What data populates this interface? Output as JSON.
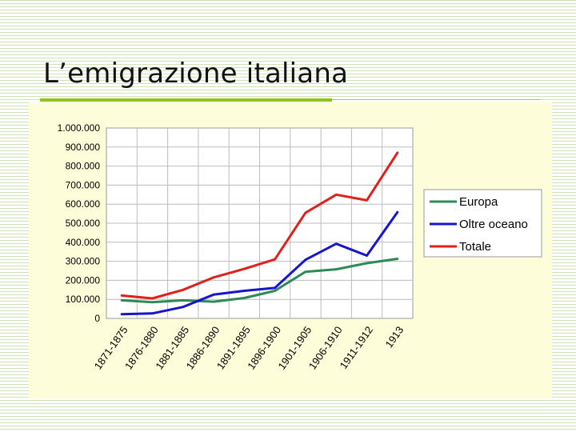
{
  "slide": {
    "title": "L’emigrazione italiana"
  },
  "colors": {
    "accent_bar": "#8fc31f",
    "panel_background": "#fdfdd9",
    "grid": "#bcbcbc"
  },
  "chart_data": {
    "type": "line",
    "title": "",
    "xlabel": "",
    "ylabel": "",
    "categories": [
      "1871-1875",
      "1876-1880",
      "1881-1885",
      "1886-1890",
      "1891-1895",
      "1896-1900",
      "1901-1905",
      "1906-1910",
      "1911-1912",
      "1913"
    ],
    "ylim": [
      0,
      1000000
    ],
    "yticks": [
      0,
      100000,
      200000,
      300000,
      400000,
      500000,
      600000,
      700000,
      800000,
      900000,
      1000000
    ],
    "ytick_labels": [
      "0",
      "100.000",
      "200.000",
      "300.000",
      "400.000",
      "500.000",
      "600.000",
      "700.000",
      "800.000",
      "900.000",
      "1.000.000"
    ],
    "grid": true,
    "legend_position": "right",
    "series": [
      {
        "name": "Europa",
        "color": "#2e8b57",
        "x": [
          0,
          1,
          2,
          3,
          4,
          5,
          6,
          7,
          8,
          9
        ],
        "values": [
          95000,
          85000,
          95000,
          88000,
          107000,
          145000,
          245000,
          258000,
          290000,
          313000
        ]
      },
      {
        "name": "Oltre oceano",
        "color": "#1515d0",
        "x": [
          0,
          1,
          2,
          3,
          4,
          5,
          6,
          7,
          8,
          9
        ],
        "values": [
          22000,
          26000,
          60000,
          125000,
          145000,
          160000,
          308000,
          392000,
          330000,
          558000
        ]
      },
      {
        "name": "Totale",
        "color": "#e0201b",
        "x": [
          0,
          1,
          2,
          3,
          4,
          5,
          6,
          7,
          8,
          9
        ],
        "values": [
          120000,
          105000,
          150000,
          215000,
          260000,
          310000,
          555000,
          650000,
          620000,
          870000
        ]
      }
    ]
  }
}
